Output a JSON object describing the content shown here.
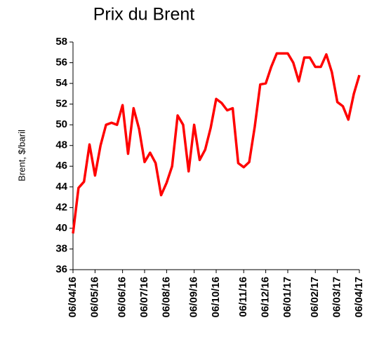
{
  "chart_data": {
    "type": "line",
    "title": "Prix du Brent",
    "y_label": "Brent, $/baril",
    "categories": [
      "06/04/16",
      null,
      null,
      null,
      "06/05/16",
      null,
      null,
      null,
      null,
      "06/06/16",
      null,
      null,
      null,
      "06/07/16",
      null,
      null,
      null,
      "06/08/16",
      null,
      null,
      null,
      null,
      "06/09/16",
      null,
      null,
      null,
      "06/10/16",
      null,
      null,
      null,
      null,
      "06/11/16",
      null,
      null,
      null,
      "06/12/16",
      null,
      null,
      null,
      "06/01/17",
      null,
      null,
      null,
      null,
      "06/02/17",
      null,
      null,
      null,
      "06/03/17",
      null,
      null,
      null,
      "06/04/17"
    ],
    "series": [
      {
        "name": "Brent",
        "color": "#ff0000",
        "values": [
          39.5,
          43.9,
          44.5,
          48.1,
          45.1,
          48.0,
          50.0,
          50.2,
          50.0,
          51.9,
          47.2,
          51.6,
          49.6,
          46.4,
          47.3,
          46.3,
          43.2,
          44.4,
          46.0,
          50.9,
          50.0,
          45.5,
          50.0,
          46.6,
          47.6,
          49.7,
          52.5,
          52.1,
          51.4,
          51.6,
          46.3,
          45.9,
          46.4,
          49.8,
          53.9,
          54.0,
          55.6,
          56.9,
          56.9,
          56.9,
          56.0,
          54.2,
          56.5,
          56.5,
          55.6,
          55.6,
          56.8,
          55.1,
          52.2,
          51.8,
          50.5,
          53.0,
          54.8
        ]
      }
    ],
    "ylim": [
      36,
      58
    ],
    "yticks": [
      36,
      38,
      40,
      42,
      44,
      46,
      48,
      50,
      52,
      54,
      56,
      58
    ],
    "grid": false
  }
}
